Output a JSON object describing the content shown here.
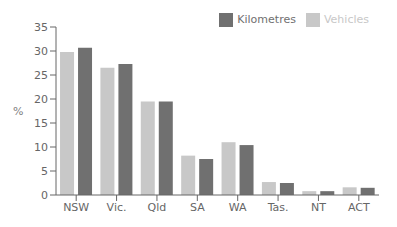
{
  "chart_data": {
    "type": "bar",
    "categories": [
      "NSW",
      "Vic.",
      "Qld",
      "SA",
      "WA",
      "Tas.",
      "NT",
      "ACT"
    ],
    "series": [
      {
        "name": "Vehicles",
        "color": "#c8c8c8",
        "values": [
          29.8,
          26.5,
          19.5,
          8.2,
          11.0,
          2.7,
          0.8,
          1.6
        ]
      },
      {
        "name": "Kilometres",
        "color": "#707070",
        "values": [
          30.7,
          27.3,
          19.5,
          7.5,
          10.4,
          2.5,
          0.8,
          1.5
        ]
      }
    ],
    "ylabel": "%",
    "ylim": [
      0,
      35
    ],
    "yticks": [
      0,
      5,
      10,
      15,
      20,
      25,
      30,
      35
    ],
    "legend": "upper right"
  }
}
